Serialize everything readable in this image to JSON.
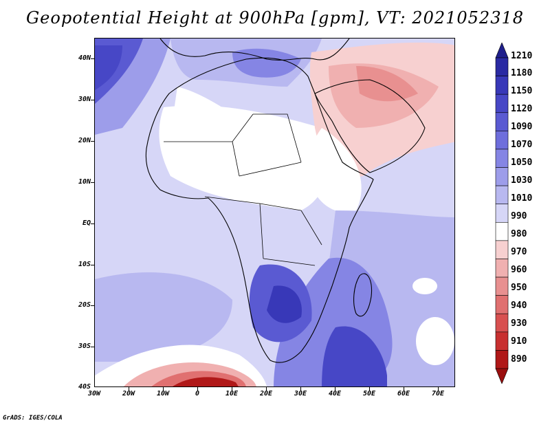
{
  "title": "Geopotential Height at 900hPa [gpm], VT: 2021052318",
  "credit": "GrADS: IGES/COLA",
  "lat_labels": [
    "40N",
    "30N",
    "20N",
    "10N",
    "EQ",
    "10S",
    "20S",
    "30S",
    "40S"
  ],
  "lon_labels": [
    "30W",
    "20W",
    "10W",
    "0",
    "10E",
    "20E",
    "30E",
    "40E",
    "50E",
    "60E",
    "70E"
  ],
  "colorbar": {
    "labels": [
      "1210",
      "1180",
      "1150",
      "1120",
      "1090",
      "1070",
      "1050",
      "1030",
      "1010",
      "990",
      "980",
      "970",
      "960",
      "950",
      "940",
      "930",
      "910",
      "890"
    ],
    "colors": [
      "#1f1f8c",
      "#2a2aa3",
      "#3838b8",
      "#4747c6",
      "#5a5ad2",
      "#6e6edc",
      "#8585e4",
      "#9d9dea",
      "#b8b8f0",
      "#d6d6f7",
      "#ffffff",
      "#f7d0d0",
      "#f0b0b0",
      "#e89090",
      "#e07070",
      "#d85050",
      "#c83030",
      "#b01818",
      "#9a0e0e"
    ]
  }
}
